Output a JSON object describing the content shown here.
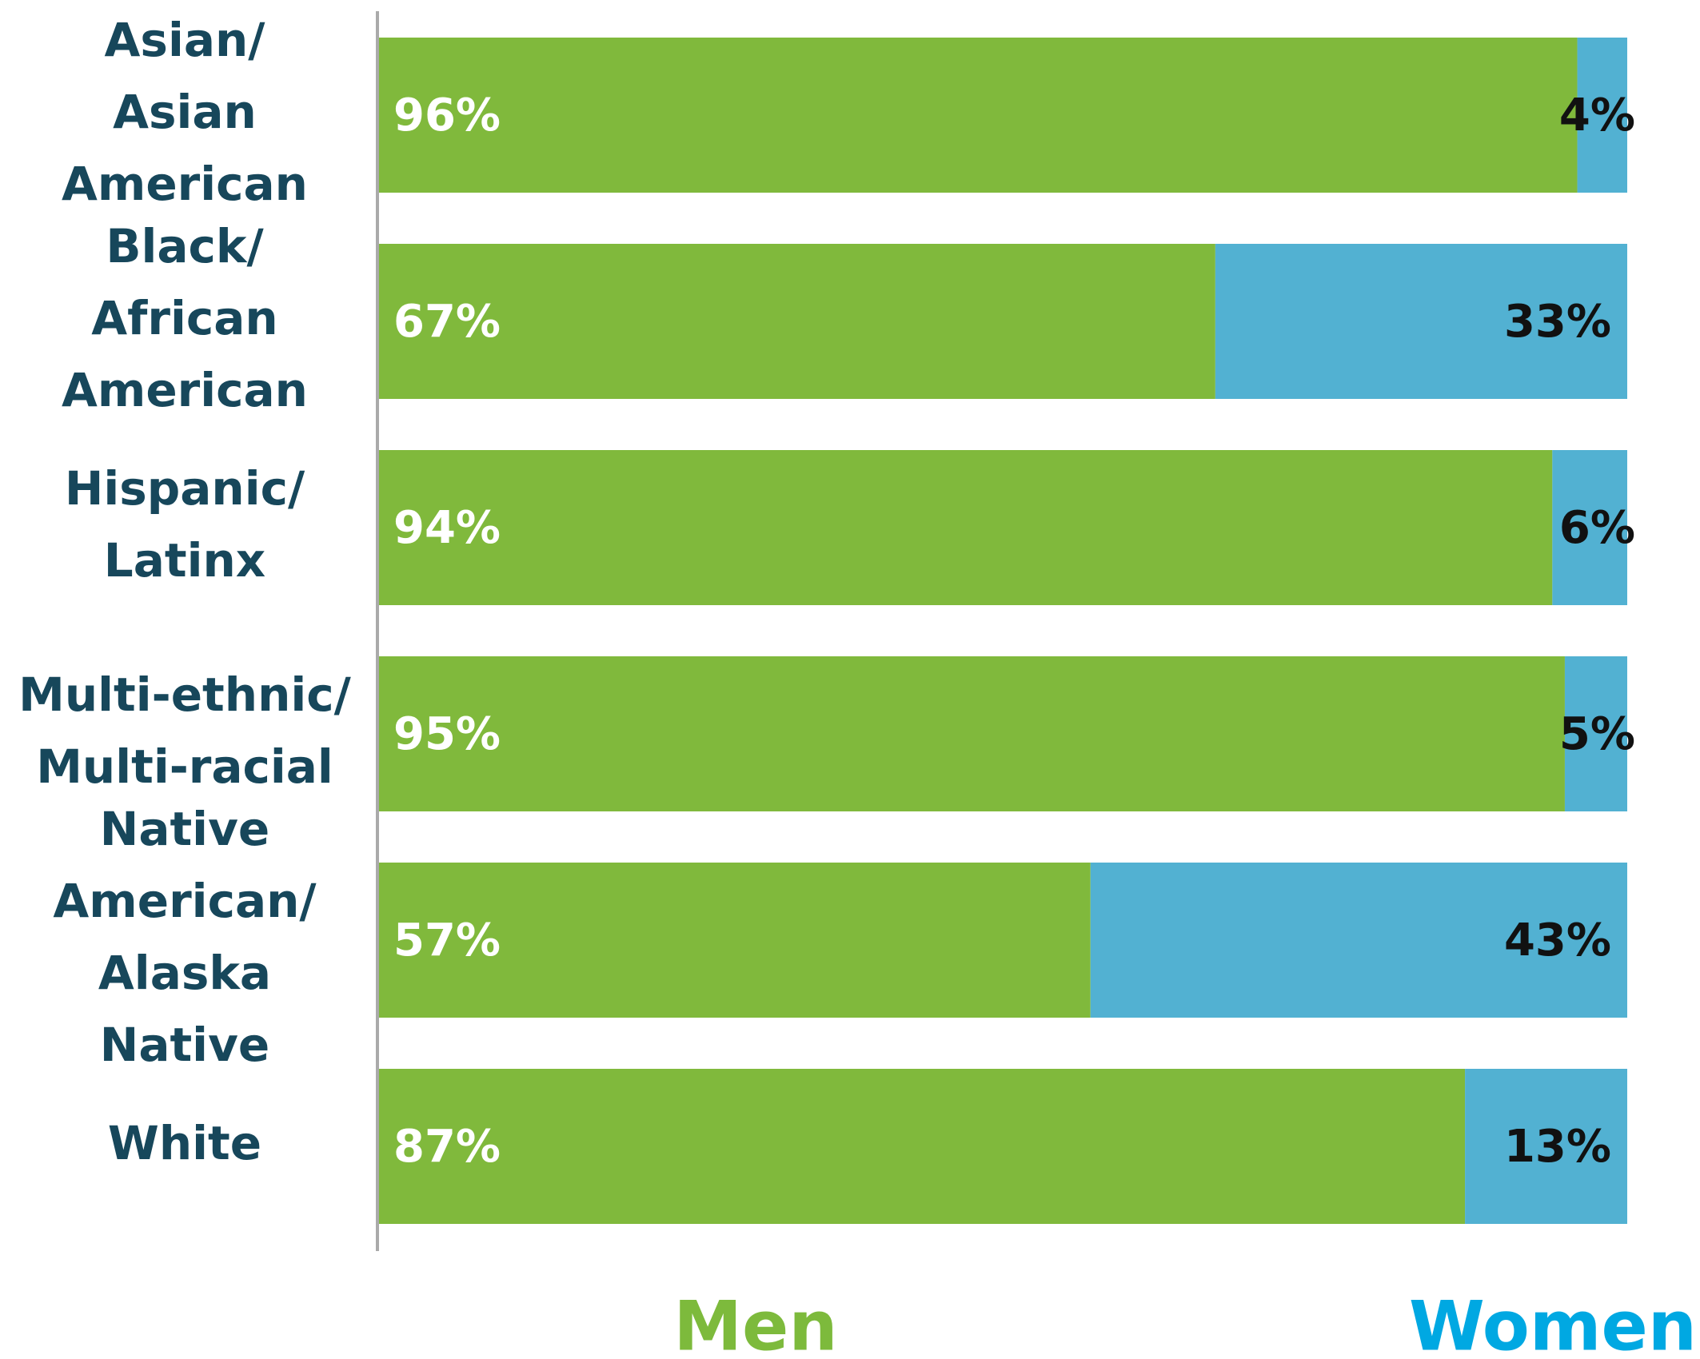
{
  "chart_data": {
    "type": "stacked-barh",
    "categories": [
      "Asian/ Asian American",
      "Black/ African American",
      "Hispanic/ Latinx",
      "Multi-ethnic/ Multi-racial",
      "Native American/ Alaska Native",
      "White"
    ],
    "series": [
      {
        "name": "Men",
        "color": "#80b93c",
        "values": [
          96,
          67,
          94,
          95,
          57,
          87
        ],
        "value_labels": [
          "96%",
          "67%",
          "94%",
          "95%",
          "57%",
          "87%"
        ]
      },
      {
        "name": "Women",
        "color": "#52b1d2",
        "values": [
          4,
          33,
          6,
          5,
          43,
          13
        ],
        "value_labels": [
          "4%",
          "33%",
          "6%",
          "5%",
          "43%",
          "13%"
        ]
      }
    ],
    "xlim": [
      0,
      100
    ],
    "legend_colors": [
      "#7dba3c",
      "#00a8e2"
    ]
  }
}
